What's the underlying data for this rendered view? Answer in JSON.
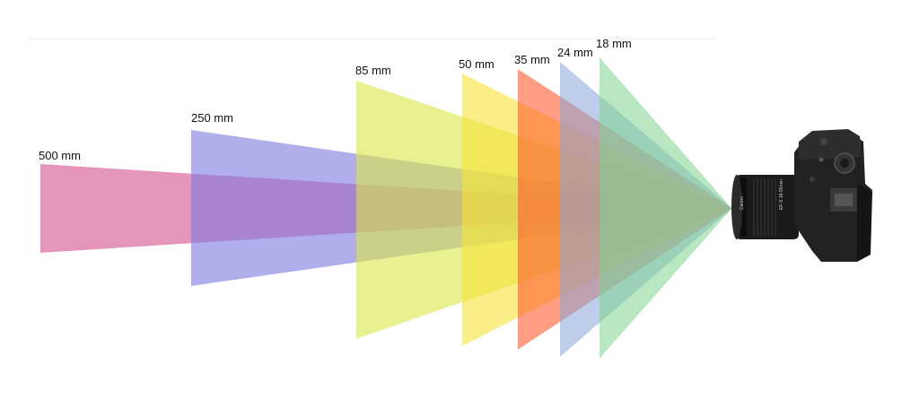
{
  "fields_of_view": [
    {
      "label": "500 mm",
      "color": "#e07aa9"
    },
    {
      "label": "250 mm",
      "color": "#7d78e0"
    },
    {
      "label": "85 mm",
      "color": "#d9e645"
    },
    {
      "label": "50 mm",
      "color": "#f7e23a"
    },
    {
      "label": "35 mm",
      "color": "#ff5a2e"
    },
    {
      "label": "24 mm",
      "color": "#89a6d9"
    },
    {
      "label": "18 mm",
      "color": "#7fd38f"
    }
  ],
  "camera": {
    "icon": "dslr-camera-icon",
    "brand": "Canon",
    "lens_text": "EF-S 18-55mm"
  }
}
